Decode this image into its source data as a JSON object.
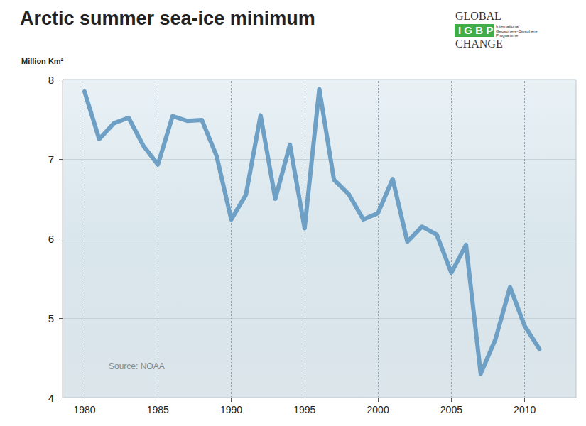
{
  "chart_data": {
    "type": "line",
    "title": "Arctic summer sea-ice minimum",
    "ylabel": "Million Km²",
    "annotations": [
      "Source: NOAA",
      "GLOBAL",
      "IGBP",
      "International",
      "Geosphere-Biosphere",
      "Programme",
      "CHANGE"
    ],
    "x": [
      1980,
      1981,
      1982,
      1983,
      1984,
      1985,
      1986,
      1987,
      1988,
      1989,
      1990,
      1991,
      1992,
      1993,
      1994,
      1995,
      1996,
      1997,
      1998,
      1999,
      2000,
      2001,
      2002,
      2003,
      2004,
      2005,
      2006,
      2007,
      2008,
      2009,
      2010,
      2011
    ],
    "values": [
      7.85,
      7.25,
      7.45,
      7.52,
      7.17,
      6.93,
      7.54,
      7.48,
      7.49,
      7.04,
      6.24,
      6.55,
      7.55,
      6.5,
      7.18,
      6.13,
      7.88,
      6.74,
      6.56,
      6.24,
      6.32,
      6.75,
      5.96,
      6.15,
      6.05,
      5.57,
      5.92,
      4.3,
      4.73,
      5.39,
      4.9,
      4.61
    ],
    "color": "#6e9fc4",
    "xlim": [
      1978.5,
      2013.5
    ],
    "xticks": [
      1980,
      1985,
      1990,
      1995,
      2000,
      2005,
      2010
    ],
    "ylim": [
      4,
      8
    ],
    "yticks": [
      4,
      5,
      6,
      7,
      8
    ],
    "grid": true
  }
}
